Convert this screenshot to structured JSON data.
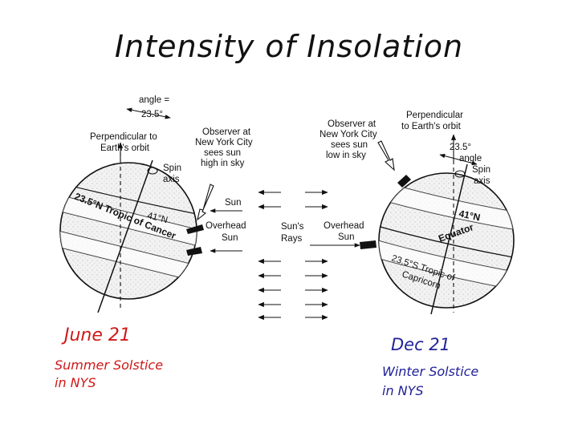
{
  "title": "Intensity of Insolation",
  "left": {
    "angle_top": "angle =",
    "angle_bottom": "23.5°",
    "perp_line1": "Perpendicular to",
    "perp_line2": "Earth's orbit",
    "spin_line1": "Spin",
    "spin_line2": "axis",
    "obs_line1": "Observer at",
    "obs_line2": "New York City",
    "obs_line3": "sees sun",
    "obs_line4": "high in sky",
    "sun_label": "Sun",
    "overhead_line1": "Overhead",
    "overhead_line2": "Sun",
    "lat_label": "41°N",
    "tropic_label": "23.5°N Tropic of Cancer",
    "date": "June 21",
    "season_line1": "Summer Solstice",
    "season_line2": "in NYS"
  },
  "center": {
    "rays_line1": "Sun's",
    "rays_line2": "Rays"
  },
  "right": {
    "perp_line1": "Perpendicular",
    "perp_line2": "to Earth's orbit",
    "angle_top": "23.5°",
    "angle_bottom": "angle",
    "spin_line1": "Spin",
    "spin_line2": "axis",
    "obs_line1": "Observer at",
    "obs_line2": "New York City",
    "obs_line3": "sees sun",
    "obs_line4": "low in sky",
    "overhead_line1": "Overhead",
    "overhead_line2": "Sun",
    "lat_label": "41°N",
    "equator_label": "Equator",
    "tropic_line1": "23.5°S Tropic of",
    "tropic_line2": "Capricorn",
    "date": "Dec 21",
    "season_line1": "Winter Solstice",
    "season_line2": "in NYS"
  }
}
